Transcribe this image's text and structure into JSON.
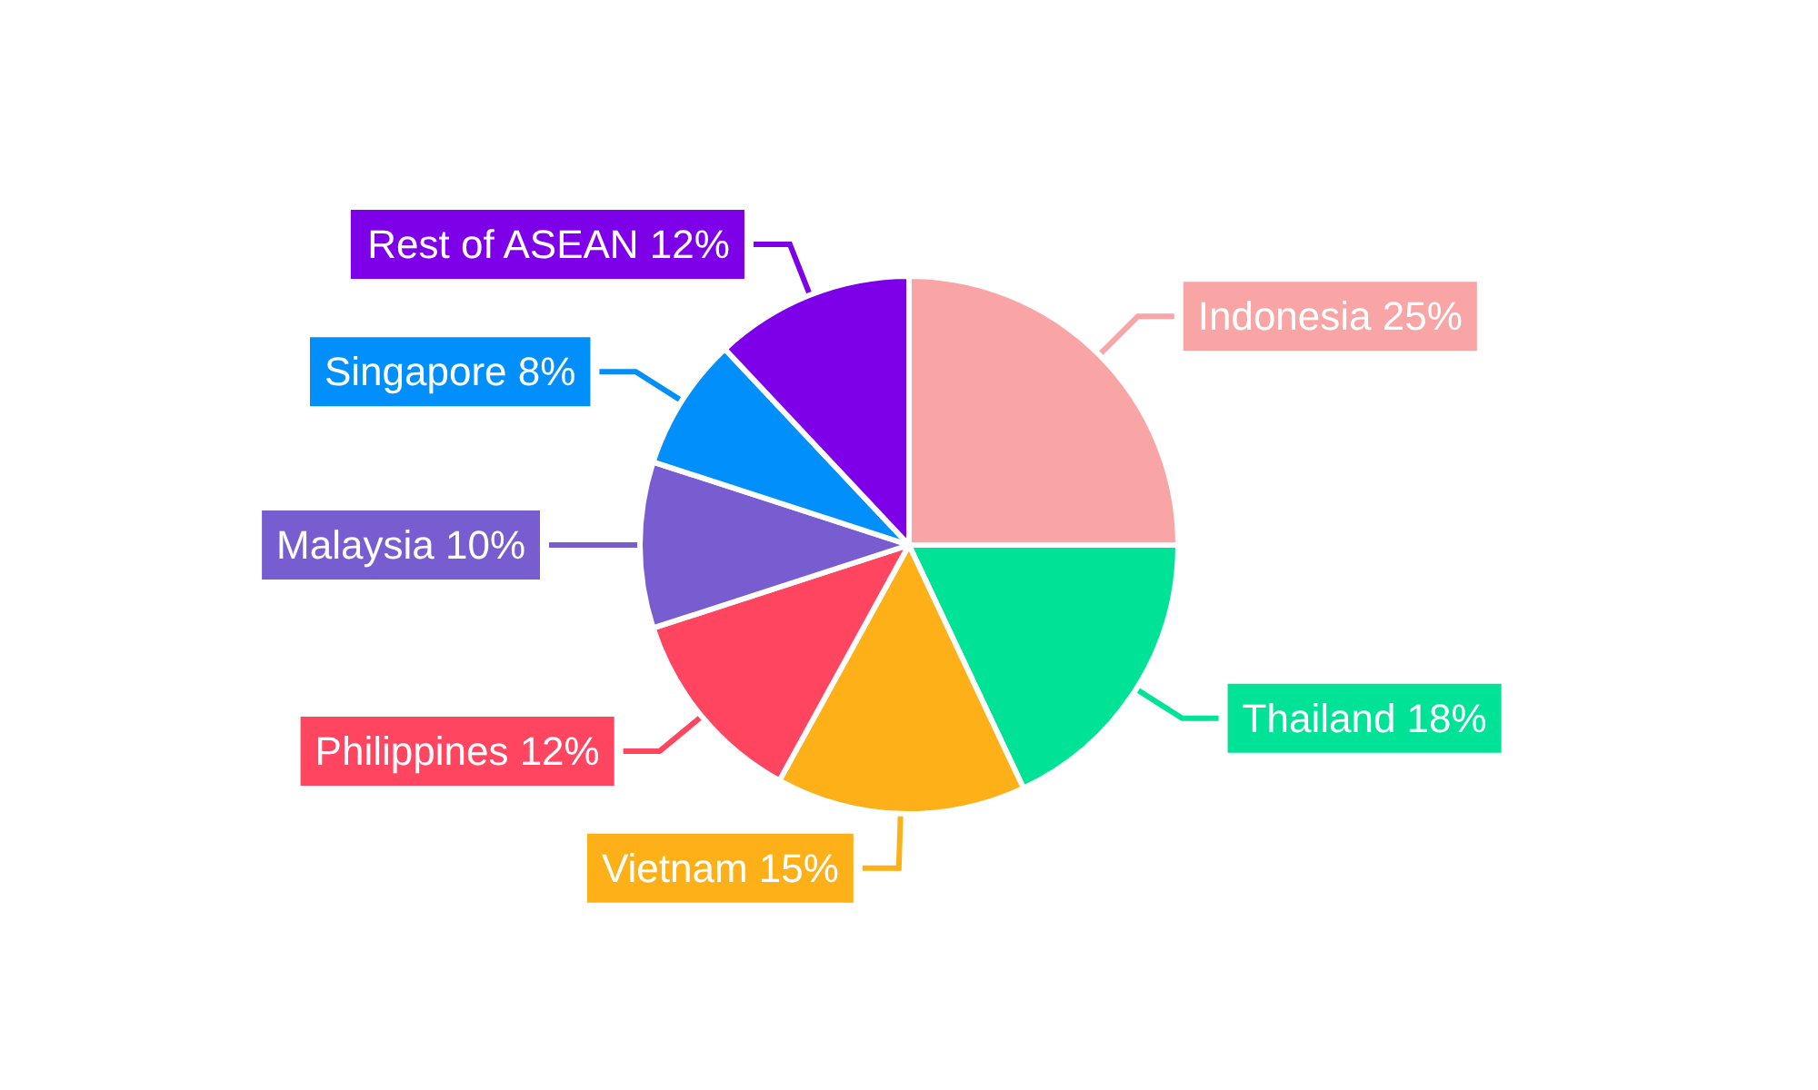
{
  "chart_data": {
    "type": "pie",
    "categories": [
      "Indonesia",
      "Thailand",
      "Vietnam",
      "Philippines",
      "Malaysia",
      "Singapore",
      "Rest of ASEAN"
    ],
    "values": [
      25,
      18,
      15,
      12,
      10,
      8,
      12
    ],
    "value_labels": [
      "25%",
      "18%",
      "15%",
      "12%",
      "10%",
      "8%",
      "12%"
    ],
    "colors": [
      "#f9a5a5",
      "#00e396",
      "#feb019",
      "#ff4560",
      "#775dd0",
      "#008ffb",
      "#7e00e8"
    ],
    "legend": false
  }
}
